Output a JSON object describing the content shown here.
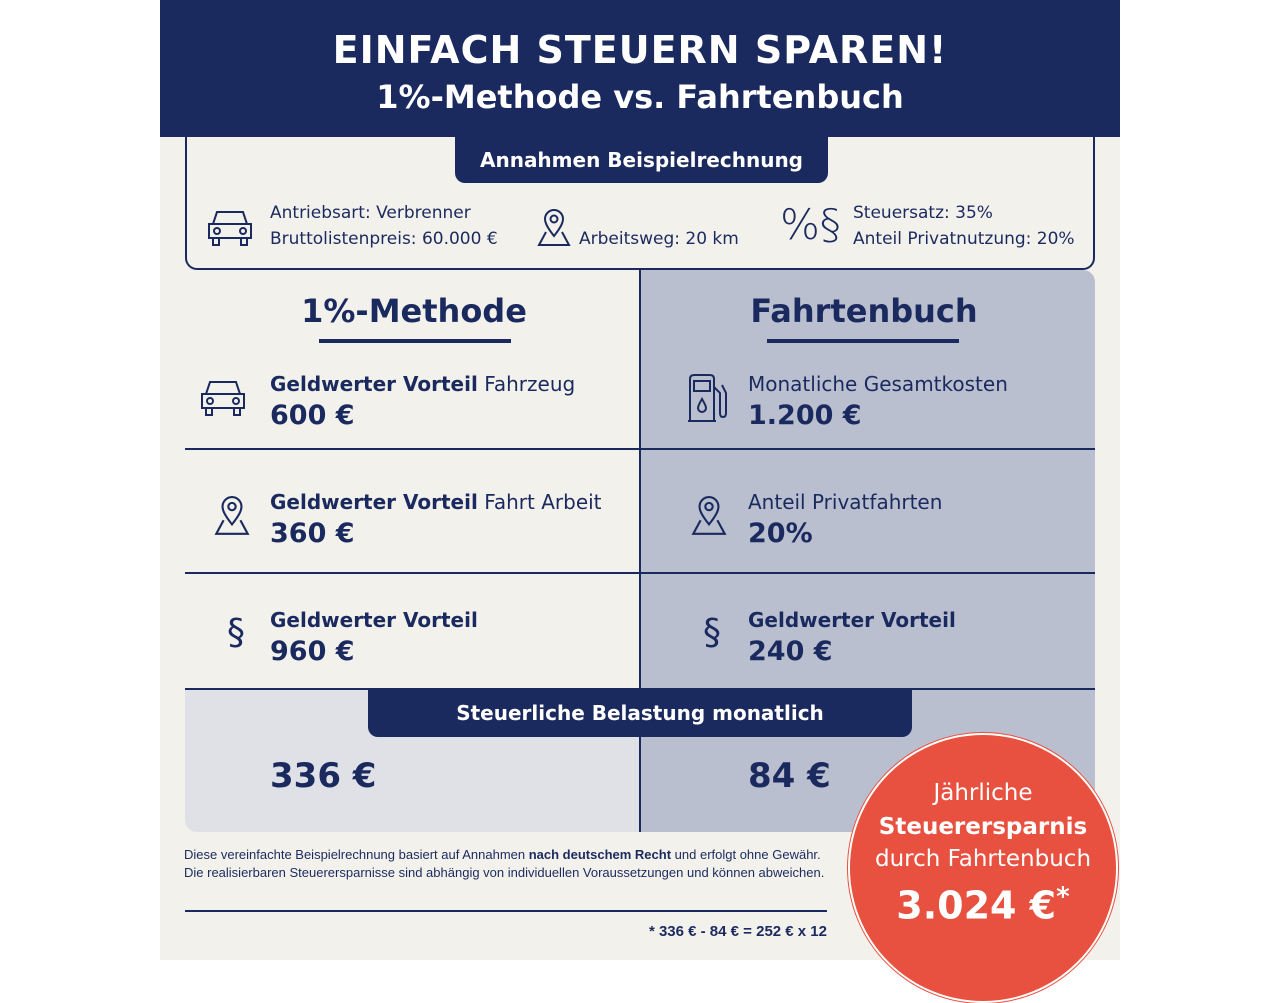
{
  "header": {
    "title": "EINFACH STEUERN SPAREN!",
    "subtitle": "1%-Methode vs. Fahrtenbuch"
  },
  "assumptions": {
    "badge": "Annahmen Beispielrechnung",
    "drive": "Antriebsart: Verbrenner",
    "price": "Bruttolistenpreis: 60.000 €",
    "commute": "Arbeitsweg: 20 km",
    "tax": "Steuersatz: 35%",
    "private": "Anteil Privatnutzung: 20%"
  },
  "left": {
    "title": "1%-Methode",
    "rows": [
      {
        "bold": "Geldwerter Vorteil",
        "rest": " Fahrzeug",
        "value": "600 €",
        "icon": "car-icon"
      },
      {
        "bold": "Geldwerter Vorteil",
        "rest": " Fahrt Arbeit",
        "value": "360 €",
        "icon": "map-pin-icon"
      },
      {
        "bold": "Geldwerter Vorteil",
        "rest": "",
        "value": "960 €",
        "icon": "paragraph-icon"
      }
    ]
  },
  "right": {
    "title": "Fahrtenbuch",
    "rows": [
      {
        "bold": "",
        "rest": "Monatliche Gesamtkosten",
        "value": "1.200 €",
        "icon": "fuel-pump-icon"
      },
      {
        "bold": "",
        "rest": "Anteil Privatfahrten",
        "value": "20%",
        "icon": "map-pin-icon"
      },
      {
        "bold": "Geldwerter Vorteil",
        "rest": "",
        "value": "240 €",
        "icon": "paragraph-icon"
      }
    ]
  },
  "monthly": {
    "badge": "Steuerliche Belastung monatlich",
    "left": "336 €",
    "right": "84 €"
  },
  "savings": {
    "line1": "Jährliche",
    "line2": "Steuerersparnis",
    "line3": "durch Fahrtenbuch",
    "value": "3.024 €",
    "mark": "*"
  },
  "footer": {
    "p1": "Diese vereinfachte Beispielrechnung basiert auf Annahmen ",
    "bold": "nach deutschem Recht",
    "p2": " und erfolgt ohne Gewähr. Die realisierbaren Steuerersparnisse sind abhängig von individuellen Voraussetzungen und können abweichen.",
    "formula": "* 336 € - 84 € = 252 € x 12"
  },
  "colors": {
    "navy": "#1b2a5e",
    "cream": "#f3f1ec",
    "grey_blue": "#b9bfcf",
    "light_grey": "#dfe1e6",
    "red": "#e8503f"
  }
}
